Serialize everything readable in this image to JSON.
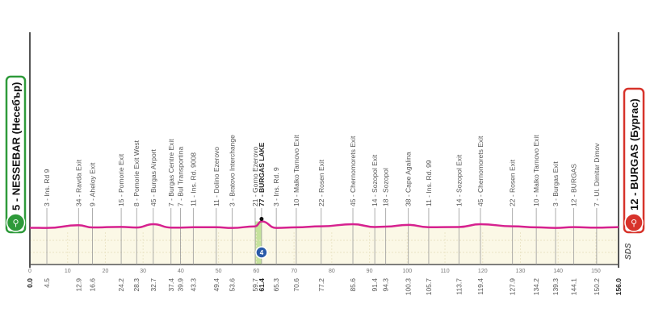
{
  "chart_data": {
    "type": "line",
    "xlabel": "",
    "ylabel": "",
    "x_unit": "km",
    "xlim": [
      0,
      156
    ],
    "x_ticks": [
      0,
      10,
      20,
      30,
      40,
      50,
      60,
      70,
      80,
      90,
      100,
      110,
      120,
      130,
      140,
      150
    ],
    "grid": true,
    "start": {
      "label": "5 - NESSEBAR (Несебър)",
      "km_label": "0.0",
      "km": 0,
      "alt": 5,
      "color": "#2e9a3a"
    },
    "finish": {
      "label": "12 - BURGAS (Бургас)",
      "km_label": "156.0",
      "km": 156,
      "alt": 12,
      "color": "#d7332b"
    },
    "profile_color": "#d6218f",
    "fill_color": "#fbf8e6",
    "waypoints": [
      {
        "km": 4.5,
        "km_label": "4.5",
        "alt": 3,
        "label": "3 - Ins. Rd 9"
      },
      {
        "km": 12.9,
        "km_label": "12.9",
        "alt": 34,
        "label": "34 - Ravda Exit"
      },
      {
        "km": 16.6,
        "km_label": "16.6",
        "alt": 9,
        "label": "9 - Aheloy Exit"
      },
      {
        "km": 24.2,
        "km_label": "24.2",
        "alt": 15,
        "label": "15 - Pomorie Exit"
      },
      {
        "km": 28.3,
        "km_label": "28.3",
        "alt": 8,
        "label": "8 - Pomorie Exit West"
      },
      {
        "km": 32.7,
        "km_label": "32.7",
        "alt": 45,
        "label": "45 - Burgas Airport"
      },
      {
        "km": 37.4,
        "km_label": "37.4",
        "alt": 7,
        "label": "7 - Burgas Centre Exit"
      },
      {
        "km": 39.9,
        "km_label": "39.9",
        "alt": 7,
        "label": "7 - Bul Transportina"
      },
      {
        "km": 43.3,
        "km_label": "43.3",
        "alt": 11,
        "label": "11 - Ins. Rd. 9008"
      },
      {
        "km": 49.4,
        "km_label": "49.4",
        "alt": 11,
        "label": "11 - Dolino Ezerovo"
      },
      {
        "km": 53.6,
        "km_label": "53.6",
        "alt": 3,
        "label": "3 - Bratovo Interchange"
      },
      {
        "km": 59.7,
        "km_label": "59.7",
        "alt": 21,
        "label": "21 - Gorno Ezerovo"
      },
      {
        "km": 61.4,
        "km_label": "61.4",
        "alt": 77,
        "label": "77 - BURGAS LAKE",
        "highlight": true,
        "sprint": "4"
      },
      {
        "km": 65.3,
        "km_label": "65.3",
        "alt": 3,
        "label": "3 - Ins. Rd. 9"
      },
      {
        "km": 70.6,
        "km_label": "70.6",
        "alt": 10,
        "label": "10 - Malko Tarnovo Exit"
      },
      {
        "km": 77.2,
        "km_label": "77.2",
        "alt": 22,
        "label": "22 - Rosen Exit"
      },
      {
        "km": 85.6,
        "km_label": "85.6",
        "alt": 45,
        "label": "45 - Chernomorets Exit"
      },
      {
        "km": 91.4,
        "km_label": "91.4",
        "alt": 14,
        "label": "14 - Sozopol Exit"
      },
      {
        "km": 94.3,
        "km_label": "94.3",
        "alt": 18,
        "label": "18 - Sozopol"
      },
      {
        "km": 100.3,
        "km_label": "100.3",
        "alt": 38,
        "label": "38 - Cape Agalina"
      },
      {
        "km": 105.7,
        "km_label": "105.7",
        "alt": 11,
        "label": "11 - Ins. Rd. 99"
      },
      {
        "km": 113.7,
        "km_label": "113.7",
        "alt": 14,
        "label": "14 - Sozopol Exit"
      },
      {
        "km": 119.4,
        "km_label": "119.4",
        "alt": 45,
        "label": "45 - Chernomorets Exit"
      },
      {
        "km": 127.9,
        "km_label": "127.9",
        "alt": 22,
        "label": "22 - Rosen Exit"
      },
      {
        "km": 134.2,
        "km_label": "134.2",
        "alt": 10,
        "label": "10 - Malko Tarnovo Exit"
      },
      {
        "km": 139.3,
        "km_label": "139.3",
        "alt": 3,
        "label": "3 - Burgas Exit"
      },
      {
        "km": 144.1,
        "km_label": "144.1",
        "alt": 12,
        "label": "12 - BURGAS"
      },
      {
        "km": 150.2,
        "km_label": "150.2",
        "alt": 7,
        "label": "7 - Ul. Dimitar Dimov"
      }
    ],
    "watermark": "SDS"
  }
}
